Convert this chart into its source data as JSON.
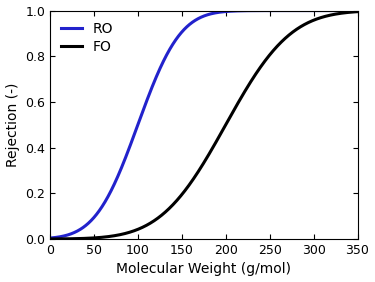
{
  "title": "",
  "xlabel": "Molecular Weight (g/mol)",
  "ylabel": "Rejection (-)",
  "xlim": [
    0,
    350
  ],
  "ylim": [
    0.0,
    1.0
  ],
  "xticks": [
    0,
    50,
    100,
    150,
    200,
    250,
    300,
    350
  ],
  "yticks": [
    0.0,
    0.2,
    0.4,
    0.6,
    0.8,
    1.0
  ],
  "ro_color": "#2222cc",
  "fo_color": "#000000",
  "ro_label": "RO",
  "fo_label": "FO",
  "ro_mu": 100,
  "ro_sigma": 38,
  "fo_mu": 200,
  "fo_sigma": 58,
  "linewidth": 2.2,
  "legend_loc": "upper left",
  "legend_fontsize": 10,
  "axis_fontsize": 10,
  "tick_fontsize": 9,
  "figsize": [
    3.75,
    2.82
  ],
  "dpi": 100
}
